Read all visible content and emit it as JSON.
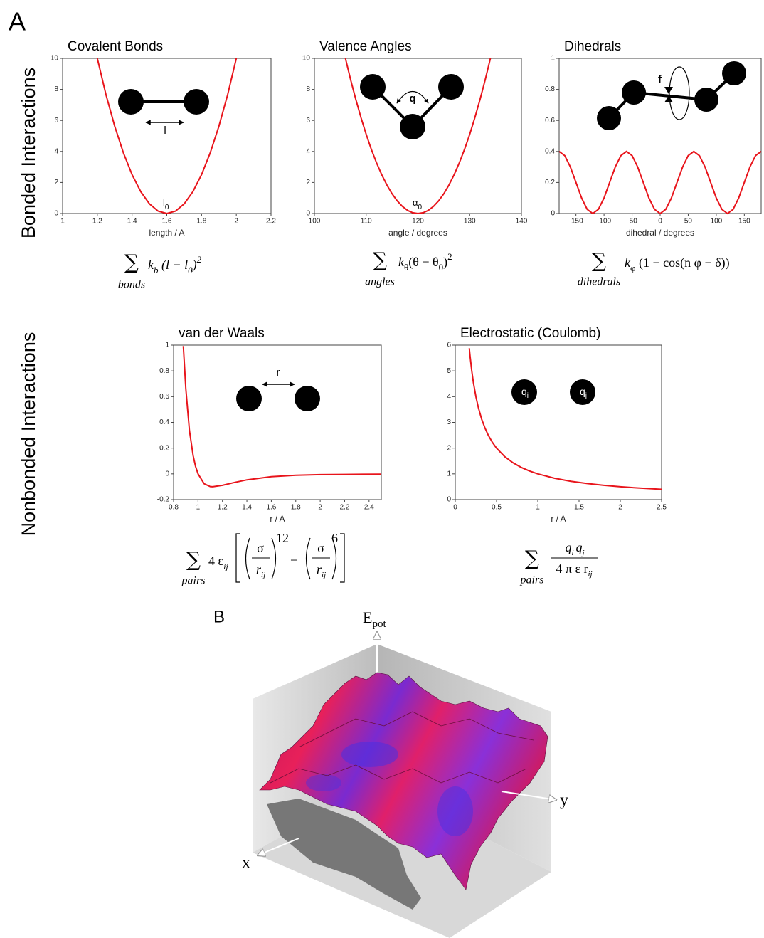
{
  "panel_a_label": "A",
  "panel_b_label": "B",
  "row_labels": [
    "Bonded Interactions",
    "Nonbonded Interactions"
  ],
  "chart_data": [
    {
      "type": "line",
      "title": "Covalent Bonds",
      "x_label": "length / A",
      "color": "#e8141b",
      "x": [
        1.2,
        1.25,
        1.3,
        1.35,
        1.4,
        1.45,
        1.5,
        1.55,
        1.6,
        1.65,
        1.7,
        1.75,
        1.8,
        1.85,
        1.9,
        1.95,
        2.0
      ],
      "values": [
        10,
        7.656,
        5.625,
        3.906,
        2.5,
        1.406,
        0.625,
        0.156,
        0,
        0.156,
        0.625,
        1.406,
        2.5,
        3.906,
        5.625,
        7.656,
        10
      ],
      "xlim": [
        1,
        2.2
      ],
      "ylim": [
        0,
        10
      ],
      "xticks": [
        1,
        1.2,
        1.4,
        1.6,
        1.8,
        2,
        2.2
      ],
      "yticks": [
        0,
        2,
        4,
        6,
        8,
        10
      ],
      "diagram_labels": [
        "l"
      ],
      "min_label": [
        "l",
        "0"
      ],
      "formula": {
        "sum": "∑",
        "index": "bonds",
        "parts": [
          "k",
          "b",
          " (l − l",
          "0",
          ")",
          "2"
        ]
      }
    },
    {
      "type": "line",
      "title": "Valence Angles",
      "x_label": "angle / degrees",
      "color": "#e8141b",
      "x": [
        106,
        107,
        108,
        109,
        110,
        111,
        112,
        113,
        114,
        115,
        116,
        117,
        118,
        119,
        120,
        121,
        122,
        123,
        124,
        125,
        126,
        127,
        128,
        129,
        130,
        131,
        132,
        133,
        134
      ],
      "values": [
        10,
        8.622,
        7.347,
        6.173,
        5.102,
        4.133,
        3.265,
        2.5,
        1.837,
        1.276,
        0.816,
        0.459,
        0.204,
        0.051,
        0,
        0.051,
        0.204,
        0.459,
        0.816,
        1.276,
        1.837,
        2.5,
        3.265,
        4.133,
        5.102,
        6.173,
        7.347,
        8.622,
        10
      ],
      "xlim": [
        100,
        140
      ],
      "ylim": [
        0,
        10
      ],
      "xticks": [
        100,
        110,
        120,
        130,
        140
      ],
      "yticks": [
        0,
        2,
        4,
        6,
        8,
        10
      ],
      "diagram_labels": [
        "q"
      ],
      "min_label": [
        "α",
        "0"
      ],
      "formula": {
        "sum": "∑",
        "index": "angles",
        "parts": [
          "k",
          "θ",
          "(θ − θ",
          "0",
          ")",
          "2"
        ]
      }
    },
    {
      "type": "line",
      "title": "Dihedrals",
      "x_label": "dihedral / degrees",
      "color": "#e8141b",
      "x": [
        -180,
        -170,
        -160,
        -150,
        -140,
        -130,
        -120,
        -110,
        -100,
        -90,
        -80,
        -70,
        -60,
        -50,
        -40,
        -30,
        -20,
        -10,
        0,
        10,
        20,
        30,
        40,
        50,
        60,
        70,
        80,
        90,
        100,
        110,
        120,
        130,
        140,
        150,
        160,
        170,
        180
      ],
      "values": [
        0.4,
        0.373,
        0.3,
        0.2,
        0.1,
        0.027,
        0,
        0.027,
        0.1,
        0.2,
        0.3,
        0.373,
        0.4,
        0.373,
        0.3,
        0.2,
        0.1,
        0.027,
        0,
        0.027,
        0.1,
        0.2,
        0.3,
        0.373,
        0.4,
        0.373,
        0.3,
        0.2,
        0.1,
        0.027,
        0,
        0.027,
        0.1,
        0.2,
        0.3,
        0.373,
        0.4
      ],
      "xlim": [
        -180,
        180
      ],
      "ylim": [
        0,
        1
      ],
      "xticks": [
        -150,
        -100,
        -50,
        0,
        50,
        100,
        150
      ],
      "yticks": [
        0,
        0.2,
        0.4,
        0.6,
        0.8,
        1
      ],
      "diagram_labels": [
        "f"
      ],
      "formula": {
        "sum": "∑",
        "index": "dihedrals",
        "parts": [
          "k",
          "φ",
          " (1 − cos(n φ − δ))"
        ]
      }
    },
    {
      "type": "line",
      "title": "van der Waals",
      "x_label": "r / A",
      "color": "#e8141b",
      "x": [
        0.88,
        0.9,
        0.93,
        0.96,
        0.98,
        1,
        1.05,
        1.1,
        1.12,
        1.2,
        1.3,
        1.4,
        1.6,
        1.8,
        2,
        2.2,
        2.5
      ],
      "values": [
        0.993,
        0.664,
        0.337,
        0.142,
        0.058,
        0,
        -0.076,
        -0.098,
        -0.1,
        -0.089,
        -0.066,
        -0.046,
        -0.022,
        -0.011,
        -0.006,
        -0.004,
        -0.002
      ],
      "xlim": [
        0.8,
        2.5
      ],
      "ylim": [
        -0.2,
        1
      ],
      "xticks": [
        0.8,
        1,
        1.2,
        1.4,
        1.6,
        1.8,
        2,
        2.2,
        2.4
      ],
      "yticks": [
        -0.2,
        0,
        0.2,
        0.4,
        0.6,
        0.8,
        1
      ],
      "diagram_labels": [
        "r"
      ],
      "formula": {
        "sum": "∑",
        "index": "pairs",
        "parts": [
          "4 ε",
          "ij",
          "σ",
          "r",
          "ij",
          "12",
          "−",
          "σ",
          "r",
          "ij",
          "6"
        ]
      }
    },
    {
      "type": "line",
      "title": "Electrostatic (Coulomb)",
      "x_label": "r / A",
      "color": "#e8141b",
      "x": [
        0.17,
        0.18,
        0.2,
        0.22,
        0.25,
        0.28,
        0.32,
        0.36,
        0.4,
        0.45,
        0.5,
        0.6,
        0.7,
        0.8,
        0.9,
        1,
        1.2,
        1.4,
        1.6,
        1.8,
        2,
        2.2,
        2.5
      ],
      "values": [
        5.882,
        5.556,
        5,
        4.545,
        4,
        3.571,
        3.125,
        2.778,
        2.5,
        2.222,
        2,
        1.667,
        1.429,
        1.25,
        1.111,
        1,
        0.833,
        0.714,
        0.625,
        0.556,
        0.5,
        0.455,
        0.4
      ],
      "xlim": [
        0,
        2.5
      ],
      "ylim": [
        0,
        6
      ],
      "xticks": [
        0,
        0.5,
        1,
        1.5,
        2,
        2.5
      ],
      "yticks": [
        0,
        1,
        2,
        3,
        4,
        5,
        6
      ],
      "diagram_labels": [
        "q",
        "i",
        "q",
        "j"
      ],
      "formula": {
        "sum": "∑",
        "index": "pairs",
        "parts": [
          "q",
          "i",
          "q",
          "j",
          "4 π ε r",
          "ij"
        ]
      }
    }
  ],
  "surface": {
    "z_label": [
      "E",
      "pot"
    ],
    "x_label": "x",
    "y_label": "y"
  }
}
